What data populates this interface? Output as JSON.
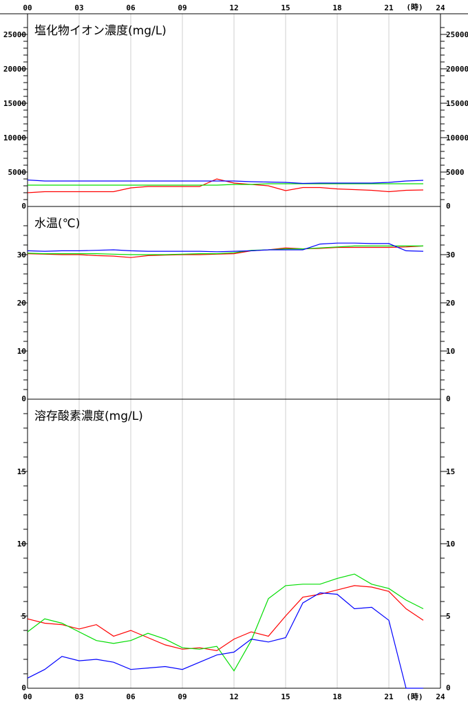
{
  "chart_data": {
    "type": "line",
    "x_axis": {
      "unit_label": "(時)",
      "tick_labels": [
        "00",
        "03",
        "06",
        "09",
        "12",
        "15",
        "18",
        "21",
        "24"
      ],
      "range": [
        0,
        24
      ],
      "gridlines": true
    },
    "panels": [
      {
        "title": "塩化物イオン濃度(mg/L)",
        "ylim": [
          0,
          28000
        ],
        "tick_labels": [
          "0",
          "5000",
          "10000",
          "15000",
          "20000",
          "25000"
        ],
        "tick_values": [
          0,
          5000,
          10000,
          15000,
          20000,
          25000
        ],
        "minor_step": 1000,
        "series": [
          {
            "color": "#ff0000",
            "x": [
              0,
              1,
              2,
              3,
              4,
              5,
              6,
              7,
              8,
              9,
              10,
              11,
              12,
              13,
              14,
              15,
              16,
              17,
              18,
              19,
              20,
              21,
              22,
              23
            ],
            "y": [
              2000,
              2150,
              2150,
              2150,
              2150,
              2150,
              2700,
              2900,
              2900,
              2900,
              2900,
              4000,
              3400,
              3200,
              3000,
              2300,
              2750,
              2750,
              2550,
              2450,
              2350,
              2150,
              2350,
              2400
            ]
          },
          {
            "color": "#00dd00",
            "x": [
              0,
              1,
              2,
              3,
              4,
              5,
              6,
              7,
              8,
              9,
              10,
              11,
              12,
              13,
              14,
              15,
              16,
              17,
              18,
              19,
              20,
              21,
              22,
              23
            ],
            "y": [
              3100,
              3100,
              3100,
              3100,
              3100,
              3100,
              3100,
              3100,
              3100,
              3100,
              3100,
              3100,
              3200,
              3200,
              3300,
              3300,
              3300,
              3300,
              3300,
              3300,
              3300,
              3300,
              3300,
              3300
            ]
          },
          {
            "color": "#0000ff",
            "x": [
              0,
              1,
              2,
              3,
              4,
              5,
              6,
              7,
              8,
              9,
              10,
              11,
              12,
              13,
              14,
              15,
              16,
              17,
              18,
              19,
              20,
              21,
              22,
              23
            ],
            "y": [
              3850,
              3700,
              3700,
              3700,
              3700,
              3700,
              3700,
              3700,
              3700,
              3700,
              3700,
              3700,
              3700,
              3600,
              3550,
              3500,
              3350,
              3400,
              3400,
              3400,
              3400,
              3500,
              3700,
              3800
            ]
          }
        ]
      },
      {
        "title": "水温(℃)",
        "ylim": [
          0,
          40
        ],
        "tick_labels": [
          "0",
          "10",
          "20",
          "30"
        ],
        "tick_values": [
          0,
          10,
          20,
          30
        ],
        "minor_step": 2,
        "series": [
          {
            "color": "#ff0000",
            "x": [
              0,
              1,
              2,
              3,
              4,
              5,
              6,
              7,
              8,
              9,
              10,
              11,
              12,
              13,
              14,
              15,
              16,
              17,
              18,
              19,
              20,
              21,
              22,
              23
            ],
            "y": [
              30.2,
              30.1,
              30.0,
              30.0,
              29.8,
              29.7,
              29.4,
              29.8,
              29.9,
              30.0,
              30.0,
              30.1,
              30.2,
              30.8,
              31.0,
              31.4,
              31.2,
              31.3,
              31.5,
              31.5,
              31.5,
              31.5,
              31.6,
              31.8
            ]
          },
          {
            "color": "#00dd00",
            "x": [
              0,
              1,
              2,
              3,
              4,
              5,
              6,
              7,
              8,
              9,
              10,
              11,
              12,
              13,
              14,
              15,
              16,
              17,
              18,
              19,
              20,
              21,
              22,
              23
            ],
            "y": [
              30.3,
              30.2,
              30.2,
              30.2,
              30.2,
              30.1,
              30.0,
              30.0,
              30.0,
              30.1,
              30.2,
              30.2,
              30.4,
              30.9,
              31.0,
              31.2,
              31.2,
              31.4,
              31.6,
              31.8,
              31.8,
              31.8,
              31.8,
              31.8
            ]
          },
          {
            "color": "#0000ff",
            "x": [
              0,
              1,
              2,
              3,
              4,
              5,
              6,
              7,
              8,
              9,
              10,
              11,
              12,
              13,
              14,
              15,
              16,
              17,
              18,
              19,
              20,
              21,
              22,
              23
            ],
            "y": [
              30.8,
              30.7,
              30.8,
              30.8,
              30.9,
              31.0,
              30.8,
              30.7,
              30.7,
              30.7,
              30.7,
              30.6,
              30.7,
              30.8,
              31.0,
              31.0,
              31.0,
              32.2,
              32.4,
              32.4,
              32.3,
              32.3,
              30.8,
              30.7
            ]
          }
        ]
      },
      {
        "title": "溶存酸素濃度(mg/L)",
        "ylim": [
          0,
          20
        ],
        "tick_labels": [
          "0",
          "5",
          "10",
          "15"
        ],
        "tick_values": [
          0,
          5,
          10,
          15
        ],
        "minor_step": 1,
        "series": [
          {
            "color": "#ff0000",
            "x": [
              0,
              1,
              2,
              3,
              4,
              5,
              6,
              7,
              8,
              9,
              10,
              11,
              12,
              13,
              14,
              15,
              16,
              17,
              18,
              19,
              20,
              21,
              22,
              23
            ],
            "y": [
              4.8,
              4.5,
              4.4,
              4.1,
              4.4,
              3.6,
              4.0,
              3.5,
              3.0,
              2.7,
              2.8,
              2.6,
              3.4,
              3.9,
              3.6,
              5.0,
              6.3,
              6.5,
              6.8,
              7.1,
              7.0,
              6.7,
              5.5,
              4.7
            ]
          },
          {
            "color": "#00dd00",
            "x": [
              0,
              1,
              2,
              3,
              4,
              5,
              6,
              7,
              8,
              9,
              10,
              11,
              12,
              13,
              14,
              15,
              16,
              17,
              18,
              19,
              20,
              21,
              22,
              23
            ],
            "y": [
              3.9,
              4.8,
              4.5,
              3.9,
              3.3,
              3.1,
              3.3,
              3.8,
              3.4,
              2.8,
              2.7,
              2.9,
              1.2,
              3.3,
              6.2,
              7.1,
              7.2,
              7.2,
              7.6,
              7.9,
              7.2,
              6.9,
              6.1,
              5.5
            ]
          },
          {
            "color": "#0000ff",
            "x": [
              0,
              1,
              2,
              3,
              4,
              5,
              6,
              7,
              8,
              9,
              10,
              11,
              12,
              13,
              14,
              15,
              16,
              17,
              18,
              19,
              20,
              21,
              22,
              23
            ],
            "y": [
              0.7,
              1.3,
              2.2,
              1.9,
              2.0,
              1.8,
              1.3,
              1.4,
              1.5,
              1.3,
              1.8,
              2.3,
              2.5,
              3.4,
              3.2,
              3.5,
              5.9,
              6.6,
              6.5,
              5.5,
              5.6,
              4.7,
              0.0,
              0.0
            ]
          }
        ]
      }
    ]
  }
}
